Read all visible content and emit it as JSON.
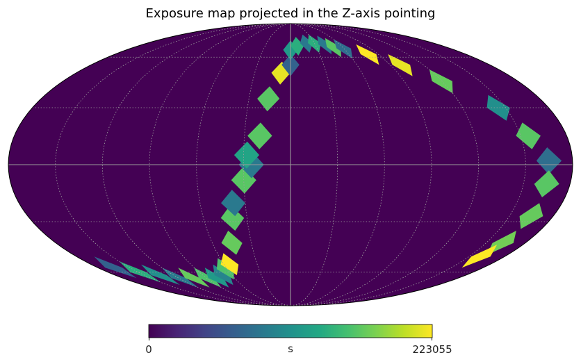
{
  "chart_data": {
    "type": "heatmap",
    "projection": "mollweide",
    "title": "Exposure map projected in the Z-axis pointing",
    "background_value": 0,
    "colormap": "viridis",
    "colorbar": {
      "min_label": "0",
      "max_label": "223055",
      "unit": "s",
      "min": 0,
      "max": 223055
    },
    "graticule": {
      "meridian_step_deg": 30,
      "parallel_step_deg": 30,
      "style": "dotted"
    },
    "equator_and_central_meridian": true,
    "exposure_track": [
      {
        "lon": -165,
        "lat": -57,
        "value": 70000
      },
      {
        "lon": -150,
        "lat": -60,
        "value": 140000
      },
      {
        "lon": -135,
        "lat": -62,
        "value": 110000
      },
      {
        "lon": -120,
        "lat": -64,
        "value": 90000
      },
      {
        "lon": -105,
        "lat": -64,
        "value": 170000
      },
      {
        "lon": -90,
        "lat": -64,
        "value": 160000
      },
      {
        "lon": -80,
        "lat": -64,
        "value": 120000
      },
      {
        "lon": -70,
        "lat": -62,
        "value": 100000
      },
      {
        "lon": -62,
        "lat": -58,
        "value": 160000
      },
      {
        "lon": -55,
        "lat": -55,
        "value": 223055
      },
      {
        "lon": -45,
        "lat": -42,
        "value": 170000
      },
      {
        "lon": -40,
        "lat": -28,
        "value": 165000
      },
      {
        "lon": -38,
        "lat": -20,
        "value": 90000
      },
      {
        "lon": -30,
        "lat": -8,
        "value": 165000
      },
      {
        "lon": -25,
        "lat": 0,
        "value": 90000
      },
      {
        "lon": -28,
        "lat": 5,
        "value": 130000
      },
      {
        "lon": -20,
        "lat": 15,
        "value": 165000
      },
      {
        "lon": -16,
        "lat": 35,
        "value": 165000
      },
      {
        "lon": -8,
        "lat": 50,
        "value": 215000
      },
      {
        "lon": 0,
        "lat": 55,
        "value": 70000
      },
      {
        "lon": 0,
        "lat": 65,
        "value": 120000
      },
      {
        "lon": 8,
        "lat": 68,
        "value": 140000
      },
      {
        "lon": 20,
        "lat": 70,
        "value": 90000
      },
      {
        "lon": 30,
        "lat": 70,
        "value": 140000
      },
      {
        "lon": 42,
        "lat": 69,
        "value": 90000
      },
      {
        "lon": 50,
        "lat": 67,
        "value": 165000
      },
      {
        "lon": 60,
        "lat": 66,
        "value": 80000
      },
      {
        "lon": 80,
        "lat": 62,
        "value": 223055
      },
      {
        "lon": 100,
        "lat": 55,
        "value": 215000
      },
      {
        "lon": 120,
        "lat": 45,
        "value": 170000
      },
      {
        "lon": 145,
        "lat": 30,
        "value": 110000
      },
      {
        "lon": 155,
        "lat": 15,
        "value": 165000
      },
      {
        "lon": 165,
        "lat": 2,
        "value": 80000
      },
      {
        "lon": 165,
        "lat": -10,
        "value": 165000
      },
      {
        "lon": 165,
        "lat": -27,
        "value": 170000
      },
      {
        "lon": 163,
        "lat": -42,
        "value": 175000
      },
      {
        "lon": 160,
        "lat": -50,
        "value": 223055
      }
    ]
  }
}
